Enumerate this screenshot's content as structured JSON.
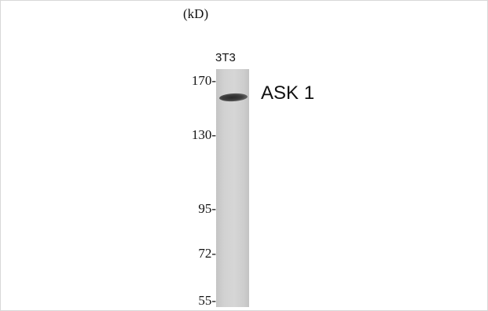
{
  "blot": {
    "unit": "(kD)",
    "lanes": [
      {
        "label": "3T3"
      }
    ],
    "markers": [
      {
        "label": "170-",
        "kd": 170
      },
      {
        "label": "130-",
        "kd": 130
      },
      {
        "label": "95-",
        "kd": 95
      },
      {
        "label": "72-",
        "kd": 72
      },
      {
        "label": "55-",
        "kd": 55
      }
    ],
    "band": {
      "label": "ASK 1",
      "lane": "3T3"
    }
  }
}
